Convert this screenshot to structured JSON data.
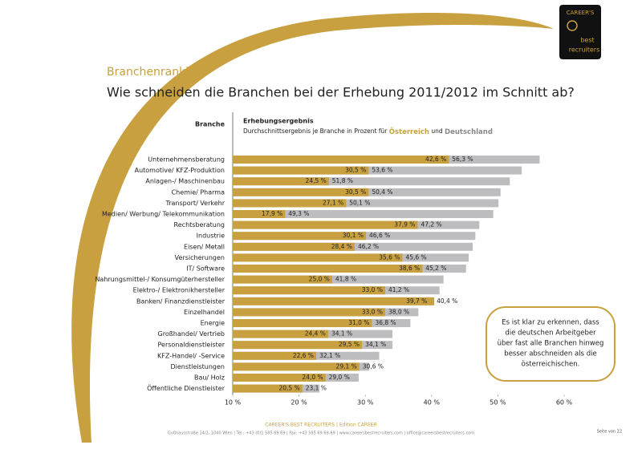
{
  "header": {
    "section": "Branchenranking",
    "title": "Wie schneiden die Branchen bei der Erhebung 2011/2012 im Schnitt ab?"
  },
  "logo": [
    "CAREER'S",
    "best",
    "recruiters"
  ],
  "chart_data": {
    "type": "bar",
    "orientation": "horizontal",
    "column_header": "Branche",
    "title": "Erhebungsergebnis",
    "legend_text": "Durchschnittsergebnis je Branche in Prozent für",
    "legend_joiner": "und",
    "categories": [
      "Unternehmensberatung",
      "Automotive/ KFZ-Produktion",
      "Anlagen-/ Maschinenbau",
      "Chemie/ Pharma",
      "Transport/ Verkehr",
      "Medien/ Werbung/ Telekommunikation",
      "Rechtsberatung",
      "Industrie",
      "Eisen/ Metall",
      "Versicherungen",
      "IT/ Software",
      "Nahrungsmittel-/ Konsumgüterhersteller",
      "Elektro-/ Elektronikhersteller",
      "Banken/ Finanzdienstleister",
      "Einzelhandel",
      "Energie",
      "Großhandel/ Vertrieb",
      "Personaldienstleister",
      "KFZ-Handel/ -Service",
      "Dienstleistungen",
      "Bau/ Holz",
      "Öffentliche Dienstleister"
    ],
    "series": [
      {
        "name": "Deutschland",
        "color": "#bdbdbf",
        "values": [
          56.3,
          53.6,
          51.8,
          50.4,
          50.1,
          49.3,
          47.2,
          46.6,
          46.2,
          45.6,
          45.2,
          41.8,
          41.2,
          39.7,
          38.0,
          36.8,
          34.1,
          34.1,
          32.1,
          30.6,
          29.0,
          23.1
        ],
        "value_labels": [
          "56,3 %",
          "53,6 %",
          "51,8 %",
          "50,4 %",
          "50,1 %",
          "49,3 %",
          "47,2 %",
          "46,6 %",
          "46,2 %",
          "45,6 %",
          "45,2 %",
          "41,8 %",
          "41,2 %",
          "39,7 %",
          "38,0 %",
          "36,8 %",
          "34,1 %",
          "34,1 %",
          "32,1 %",
          "30,6 %",
          "29,0 %",
          "23,1 %"
        ]
      },
      {
        "name": "Österreich",
        "color": "#c9a03f",
        "values": [
          42.6,
          30.5,
          24.5,
          30.5,
          27.1,
          17.9,
          37.9,
          30.1,
          28.4,
          35.6,
          38.6,
          25.0,
          33.0,
          40.4,
          33.0,
          31.0,
          24.4,
          29.5,
          22.6,
          29.1,
          24.0,
          20.5
        ],
        "value_labels": [
          "42,6 %",
          "30,5 %",
          "24,5 %",
          "30,5 %",
          "27,1 %",
          "17,9 %",
          "37,9 %",
          "30,1 %",
          "28,4 %",
          "35,6 %",
          "38,6 %",
          "25,0 %",
          "33,0 %",
          "40,4 %",
          "33,0 %",
          "31,0 %",
          "24,4 %",
          "29,5 %",
          "22,6 %",
          "29,1 %",
          "24,0 %",
          "20,5 %"
        ]
      }
    ],
    "xlim": [
      10,
      60
    ],
    "xticks": [
      {
        "value": 10,
        "label": "10 %"
      },
      {
        "value": 20,
        "label": "20 %"
      },
      {
        "value": 30,
        "label": "30 %"
      },
      {
        "value": 40,
        "label": "40 %"
      },
      {
        "value": 50,
        "label": "50 %"
      },
      {
        "value": 60,
        "label": "60 %"
      }
    ],
    "annotation": [
      "Es ist klar zu erkennen, dass",
      "die deutschen Arbeitgeber",
      "über fast alle Branchen hinweg",
      "besser abschneiden als die",
      "österreichischen."
    ]
  },
  "footer": {
    "brand": "CAREER'S BEST RECRUITERS | Edition CAREER",
    "address": "Gußhausstraße 14/2, 1040 Wien | Tel.: +43 (0)1 585 69 69 | Fax: +43 585 69 69-69 | www.careersbestrecruiters.com | office@careersbestrecruiters.com",
    "page": "Seite von 22"
  }
}
